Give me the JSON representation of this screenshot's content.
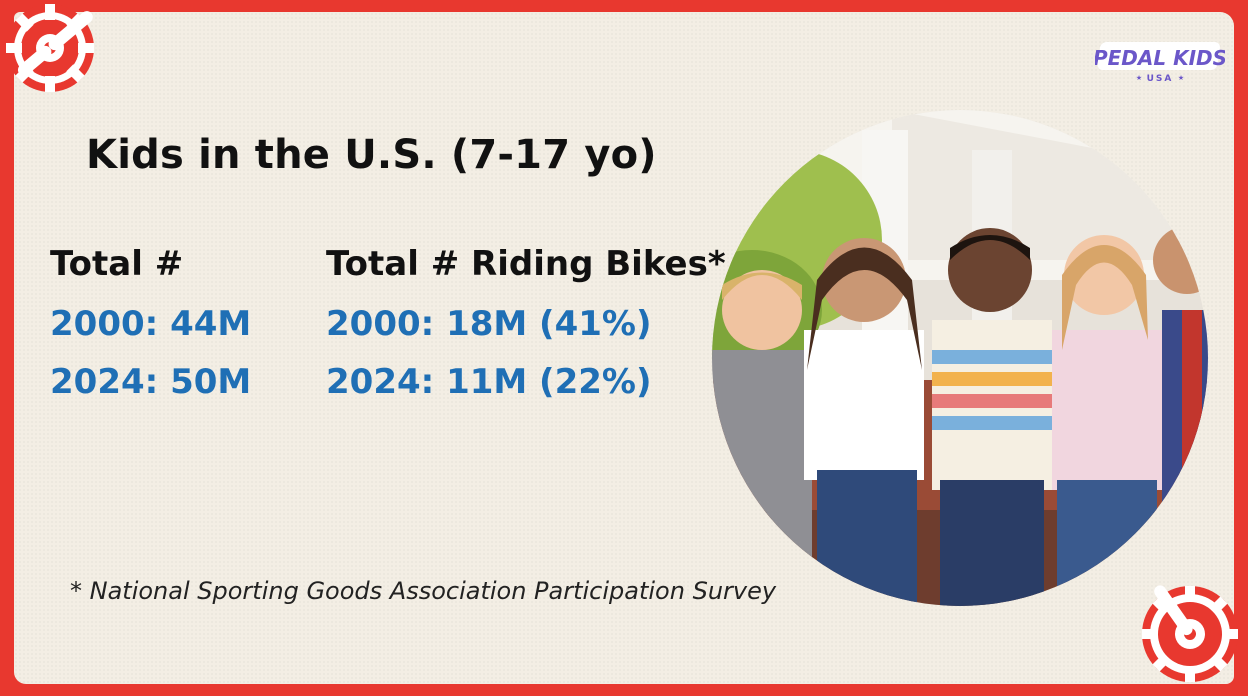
{
  "slide": {
    "title": "Kids in the U.S. (7-17 yo)",
    "total": {
      "header": "Total #",
      "rows": [
        "2000: 44M",
        "2024: 50M"
      ]
    },
    "riding": {
      "header": "Total # Riding Bikes*",
      "rows": [
        "2000: 18M (41%)",
        "2024: 11M (22%)"
      ]
    },
    "footnote": "* National Sporting Goods Association Participation Survey"
  },
  "logo": {
    "name": "PEDAL KIDS",
    "sub": "USA"
  },
  "colors": {
    "border": "#e8382f",
    "paper": "#f3eee4",
    "accent_blue": "#1f6fb5",
    "logo_purple": "#6b57c9"
  },
  "icons": [
    "bike-crank-gear-icon",
    "bike-crank-gear-icon"
  ]
}
